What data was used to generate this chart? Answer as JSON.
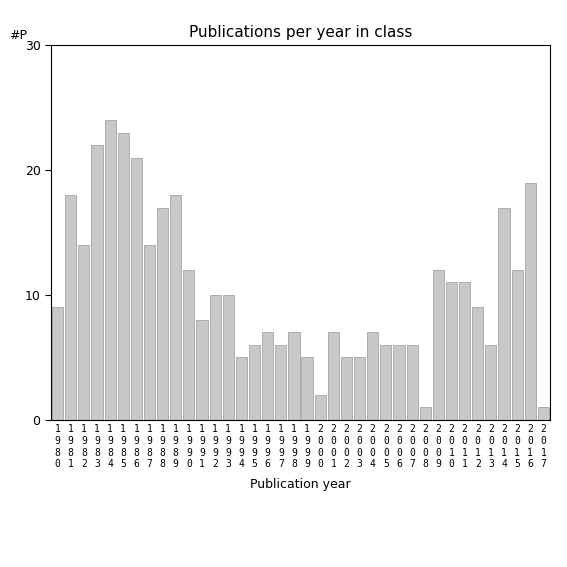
{
  "title": "Publications per year in class",
  "xlabel": "Publication year",
  "ylabel": "#P",
  "ylim": [
    0,
    30
  ],
  "yticks": [
    0,
    10,
    20,
    30
  ],
  "bar_color": "#c8c8c8",
  "edge_color": "#999999",
  "categories": [
    "1980",
    "1981",
    "1982",
    "1983",
    "1984",
    "1985",
    "1986",
    "1987",
    "1988",
    "1989",
    "1990",
    "1991",
    "1992",
    "1993",
    "1994",
    "1995",
    "1996",
    "1997",
    "1998",
    "1999",
    "2000",
    "2001",
    "2002",
    "2003",
    "2004",
    "2005",
    "2006",
    "2007",
    "2008",
    "2009",
    "2010",
    "2011",
    "2012",
    "2013",
    "2014",
    "2015",
    "2016",
    "2017"
  ],
  "values": [
    9,
    18,
    14,
    22,
    24,
    23,
    21,
    14,
    17,
    18,
    12,
    8,
    10,
    10,
    5,
    6,
    7,
    6,
    7,
    5,
    2,
    7,
    5,
    5,
    7,
    6,
    6,
    6,
    1,
    12,
    11,
    11,
    9,
    6,
    17,
    12,
    19,
    1
  ],
  "tick_label_rows": [
    [
      "1",
      "1",
      "1",
      "1",
      "1",
      "1",
      "1",
      "1",
      "1",
      "1",
      "1",
      "1",
      "1",
      "1",
      "1",
      "1",
      "1",
      "1",
      "1",
      "1",
      "2",
      "2",
      "2",
      "2",
      "2",
      "2",
      "2",
      "2",
      "2",
      "2",
      "2",
      "2",
      "2",
      "2",
      "2",
      "2",
      "2",
      "2"
    ],
    [
      "9",
      "9",
      "9",
      "9",
      "9",
      "9",
      "9",
      "9",
      "9",
      "9",
      "9",
      "9",
      "9",
      "9",
      "9",
      "9",
      "9",
      "9",
      "9",
      "9",
      "0",
      "0",
      "0",
      "0",
      "0",
      "0",
      "0",
      "0",
      "0",
      "0",
      "0",
      "0",
      "0",
      "0",
      "0",
      "0",
      "0",
      "0"
    ],
    [
      "8",
      "8",
      "8",
      "8",
      "8",
      "8",
      "8",
      "8",
      "8",
      "8",
      "9",
      "9",
      "9",
      "9",
      "9",
      "9",
      "9",
      "9",
      "9",
      "9",
      "0",
      "0",
      "0",
      "0",
      "0",
      "0",
      "0",
      "0",
      "0",
      "0",
      "1",
      "1",
      "1",
      "1",
      "1",
      "1",
      "1",
      "1"
    ],
    [
      "0",
      "1",
      "2",
      "3",
      "4",
      "5",
      "6",
      "7",
      "8",
      "9",
      "0",
      "1",
      "2",
      "3",
      "4",
      "5",
      "6",
      "7",
      "8",
      "9",
      "0",
      "1",
      "2",
      "3",
      "4",
      "5",
      "6",
      "7",
      "8",
      "9",
      "0",
      "1",
      "2",
      "3",
      "4",
      "5",
      "6",
      "7"
    ]
  ],
  "figsize": [
    5.67,
    5.67
  ],
  "dpi": 100
}
